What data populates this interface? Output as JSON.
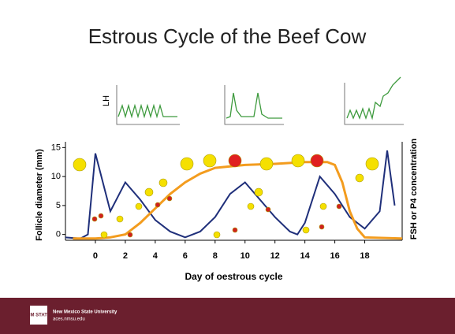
{
  "slide_title": "Estrous Cycle of the Beef Cow",
  "footer": {
    "logo": "NM STATE",
    "university": "New Mexico State University",
    "url": "aces.nmsu.edu"
  },
  "inset_label": "LH",
  "chart_data": {
    "type": "line",
    "x_label": "Day of oestrous cycle",
    "y_label": "Follicle diameter (mm)",
    "y2_label": "FSH or P4  concentration",
    "xlim": [
      -2,
      20.5
    ],
    "xticks": [
      0,
      2,
      4,
      6,
      8,
      10,
      12,
      14,
      16,
      18
    ],
    "ylim": [
      -1,
      16
    ],
    "yticks": [
      0,
      5,
      10,
      15
    ],
    "series": [
      {
        "color": "#1f2f7a",
        "x": [
          -2,
          -1,
          -0.5,
          0,
          0.5,
          1,
          2,
          3,
          4,
          5,
          6,
          7,
          8,
          9,
          10,
          11,
          12,
          13,
          13.5,
          14,
          15,
          16,
          17,
          18,
          19,
          19.5,
          20
        ],
        "values": [
          -0.5,
          -0.7,
          0,
          14,
          9,
          4,
          9,
          6,
          2.5,
          0.5,
          -0.5,
          0.5,
          3,
          7,
          9,
          6,
          3,
          0.5,
          0,
          2,
          10,
          7,
          3,
          1,
          4,
          14.5,
          5
        ]
      },
      {
        "color": "#f39c1e",
        "x": [
          -1.5,
          0,
          1,
          2,
          3,
          4,
          5,
          6,
          7,
          8,
          10,
          12,
          14,
          15.5,
          16,
          16.5,
          17,
          17.5,
          18,
          20.5
        ],
        "values": [
          -0.7,
          -0.7,
          -0.5,
          0,
          2,
          4.5,
          7,
          9,
          10.5,
          11.5,
          12,
          12.2,
          12.5,
          12.5,
          12,
          9,
          4,
          1,
          -0.5,
          -0.7
        ]
      }
    ]
  }
}
